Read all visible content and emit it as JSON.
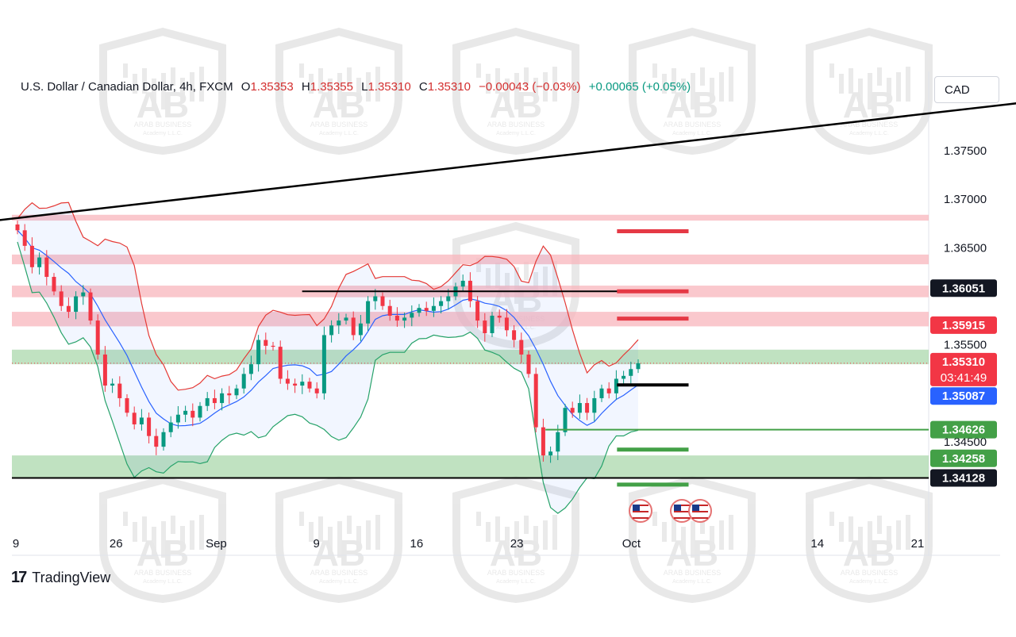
{
  "header": {
    "symbol": "U.S. Dollar / Canadian Dollar, 4h, FXCM",
    "open_label": "O",
    "open": "1.35353",
    "high_label": "H",
    "high": "1.35355",
    "low_label": "L",
    "low": "1.35310",
    "close_label": "C",
    "close": "1.35310",
    "change": "−0.00043 (−0.03%)",
    "change2": "+0.00065 (+0.05%)"
  },
  "currency_button": "CAD",
  "brand": {
    "name": "TradingView",
    "mark": "17"
  },
  "watermark": {
    "letters": "AB",
    "text": "ARAB BUSINESS",
    "subtext": "Academy L.L.C."
  },
  "colors": {
    "up": "#089981",
    "down": "#f23645",
    "bb_upper": "#e53935",
    "bb_lower": "#26a269",
    "bb_mid": "#2962ff",
    "resistance_zone": "#f8b6bc",
    "support_zone": "#a5d6a7",
    "trendline": "#000000"
  },
  "chart_data": {
    "type": "candlestick",
    "symbol": "USDCAD",
    "timeframe": "4h",
    "y_ticks": [
      "1.37500",
      "1.37000",
      "1.36500",
      "1.35500",
      "1.34500"
    ],
    "x_ticks": [
      "9",
      "26",
      "Sep",
      "9",
      "16",
      "23",
      "Oct",
      "14",
      "21"
    ],
    "price_labels": [
      {
        "value": "1.36051",
        "style": "black"
      },
      {
        "value": "1.35915",
        "style": "red"
      },
      {
        "value": "1.35310",
        "sub": "03:41:49",
        "style": "red"
      },
      {
        "value": "1.35087",
        "style": "blue"
      },
      {
        "value": "1.34626",
        "style": "green"
      },
      {
        "value": "1.34258",
        "style": "green"
      },
      {
        "value": "1.34128",
        "style": "black"
      }
    ],
    "resistance_zones": [
      [
        1.3678,
        1.3684
      ],
      [
        1.3633,
        1.3643
      ],
      [
        1.3599,
        1.3611
      ],
      [
        1.3569,
        1.3584
      ]
    ],
    "support_zones": [
      [
        1.353,
        1.3545
      ],
      [
        1.3412,
        1.3436
      ]
    ],
    "horizontal_lines": [
      {
        "price": 1.36051,
        "color": "black",
        "from": "2024-09-08",
        "to": "2024-10-05"
      },
      {
        "price": 1.35087,
        "color": "black",
        "from": "2024-09-30",
        "to": "2024-10-05"
      },
      {
        "price": 1.34626,
        "color": "green",
        "from": "2024-09-25",
        "to": "2024-10-27"
      },
      {
        "price": 1.34128,
        "color": "black",
        "from": "2024-08-14",
        "to": "2024-10-27"
      }
    ],
    "target_markers": [
      {
        "price": 1.3667,
        "color": "red"
      },
      {
        "price": 1.36051,
        "color": "red"
      },
      {
        "price": 1.3577,
        "color": "red"
      },
      {
        "price": 1.3442,
        "color": "green"
      },
      {
        "price": 1.3406,
        "color": "green"
      }
    ],
    "trendline": {
      "from": [
        "2024-08-14",
        1.3672
      ],
      "to": [
        "2024-10-28",
        1.3799
      ]
    },
    "events": [
      "US",
      "US",
      "US"
    ],
    "close_series": [
      1.3668,
      1.3652,
      1.363,
      1.364,
      1.362,
      1.3605,
      1.359,
      1.3584,
      1.36,
      1.3604,
      1.3575,
      1.354,
      1.3508,
      1.351,
      1.3495,
      1.348,
      1.3468,
      1.3475,
      1.3456,
      1.3445,
      1.346,
      1.347,
      1.3478,
      1.3482,
      1.3475,
      1.3487,
      1.3495,
      1.349,
      1.35,
      1.3498,
      1.3505,
      1.352,
      1.353,
      1.3555,
      1.3549,
      1.3548,
      1.3515,
      1.351,
      1.3508,
      1.3512,
      1.3505,
      1.35,
      1.356,
      1.357,
      1.3575,
      1.3578,
      1.356,
      1.3572,
      1.3595,
      1.36,
      1.359,
      1.358,
      1.3575,
      1.3578,
      1.3583,
      1.3588,
      1.3585,
      1.359,
      1.3595,
      1.36,
      1.361,
      1.3616,
      1.3595,
      1.3575,
      1.3562,
      1.358,
      1.3578,
      1.3565,
      1.3555,
      1.354,
      1.352,
      1.3465,
      1.3436,
      1.344,
      1.346,
      1.3485,
      1.348,
      1.349,
      1.348,
      1.3495,
      1.3505,
      1.35,
      1.3515,
      1.3518,
      1.3525,
      1.3531
    ]
  }
}
